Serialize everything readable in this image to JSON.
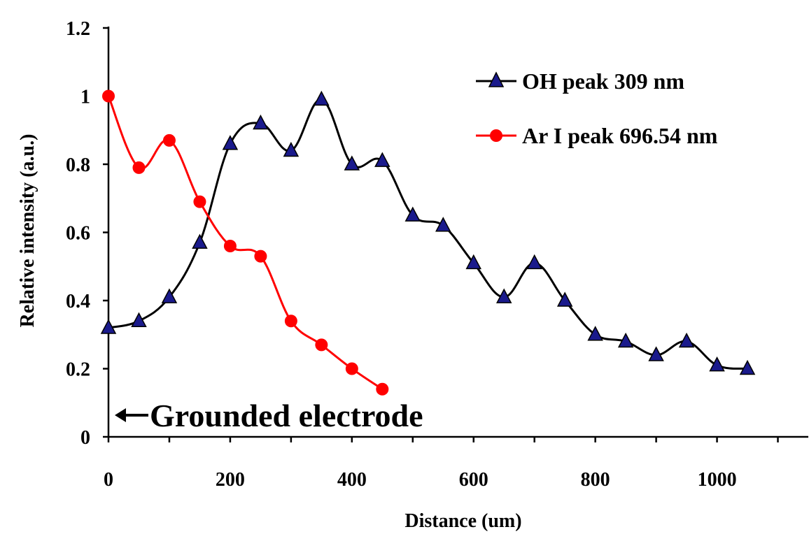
{
  "chart_data": {
    "type": "line",
    "xlabel": "Distance (um)",
    "ylabel": "Relative intensity (a.u.)",
    "xlim": [
      0,
      1150
    ],
    "ylim": [
      0,
      1.2
    ],
    "x_ticks": [
      0,
      200,
      400,
      600,
      800,
      1000
    ],
    "x_tick_labels": [
      "0",
      "200",
      "400",
      "600",
      "800",
      "1000"
    ],
    "y_ticks": [
      0,
      0.2,
      0.4,
      0.6,
      0.8,
      1,
      1.2
    ],
    "y_tick_labels": [
      "0",
      "0.2",
      "0.4",
      "0.6",
      "0.8",
      "1",
      "1.2"
    ],
    "grid": false,
    "legend_position": "top-right",
    "annotation": "Grounded electrode",
    "series": [
      {
        "name": "OH peak 309 nm",
        "marker": "triangle",
        "color": "#000000",
        "marker_color": "#1a1a8c",
        "x": [
          0,
          50,
          100,
          150,
          200,
          250,
          300,
          350,
          400,
          450,
          500,
          550,
          600,
          650,
          700,
          750,
          800,
          850,
          900,
          950,
          1000,
          1050
        ],
        "y": [
          0.32,
          0.34,
          0.41,
          0.57,
          0.86,
          0.92,
          0.84,
          0.99,
          0.8,
          0.81,
          0.65,
          0.62,
          0.51,
          0.41,
          0.51,
          0.4,
          0.3,
          0.28,
          0.24,
          0.28,
          0.21,
          0.2
        ]
      },
      {
        "name": "Ar I peak 696.54 nm",
        "marker": "circle",
        "color": "#ff0000",
        "marker_color": "#ff0000",
        "x": [
          0,
          50,
          100,
          150,
          200,
          250,
          300,
          350,
          400,
          450
        ],
        "y": [
          1.0,
          0.79,
          0.87,
          0.69,
          0.56,
          0.53,
          0.34,
          0.27,
          0.2,
          0.14
        ]
      }
    ]
  }
}
